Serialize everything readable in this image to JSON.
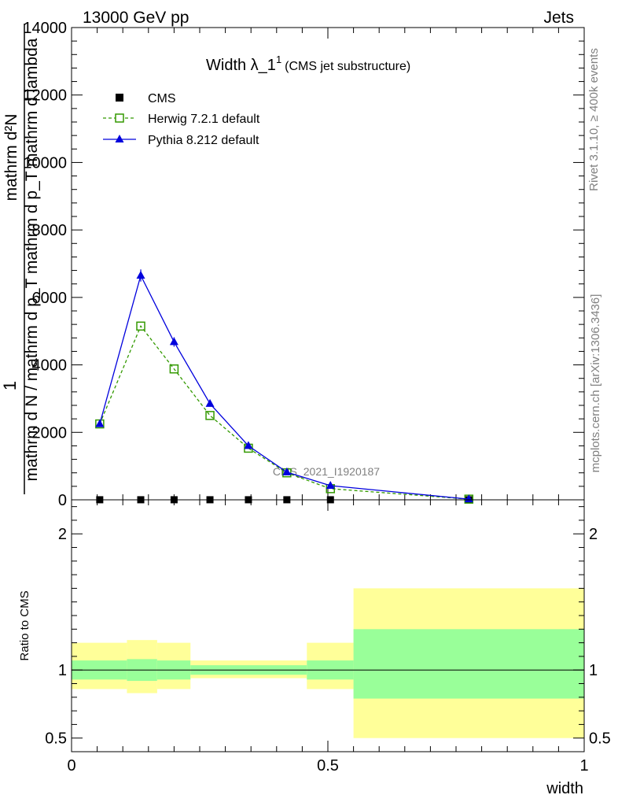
{
  "header": {
    "left": "13000 GeV pp",
    "right": "Jets"
  },
  "side": {
    "rivet": "Rivet 3.1.10, ≥ 400k events",
    "mcplots": "mcplots.cern.ch [arXiv:1306.3436]"
  },
  "watermark": "CMS_2021_I1920187",
  "ylabel_main": {
    "one": "1",
    "frac_top": "mathrm d²N",
    "frac_bottom": "mathrm d N / mathrm d p_T mathrm d p_T mathrm d lambda"
  },
  "chart_data": [
    {
      "type": "line",
      "title": "Width λ_1¹ (CMS jet substructure)",
      "title_main": "Width λ_1",
      "title_sup": "1",
      "title_sub": "(CMS jet substructure)",
      "ylim": [
        0,
        14000
      ],
      "xlim": [
        0,
        1
      ],
      "yticks": [
        {
          "v": 0,
          "label": "0"
        },
        {
          "v": 2000,
          "label": "2000"
        },
        {
          "v": 4000,
          "label": "4000"
        },
        {
          "v": 6000,
          "label": "6000"
        },
        {
          "v": 8000,
          "label": "8000"
        },
        {
          "v": 10000,
          "label": "10000"
        },
        {
          "v": 12000,
          "label": "12000"
        },
        {
          "v": 14000,
          "label": "14000"
        }
      ],
      "legend_position": "top-left",
      "series": [
        {
          "name": "CMS",
          "color": "#000000",
          "marker": "square-filled",
          "x": [
            0.055,
            0.135,
            0.2,
            0.27,
            0.345,
            0.42,
            0.505,
            0.775
          ],
          "values": [
            2,
            2,
            2,
            2,
            2,
            2,
            2,
            2
          ]
        },
        {
          "name": "Herwig 7.2.1 default",
          "color": "#339900",
          "marker": "square-open",
          "dashed": true,
          "x": [
            0.055,
            0.135,
            0.2,
            0.27,
            0.345,
            0.42,
            0.505,
            0.775
          ],
          "values": [
            2250,
            5150,
            3880,
            2500,
            1530,
            800,
            330,
            20
          ]
        },
        {
          "name": "Pythia 8.212 default",
          "color": "#0000dd",
          "marker": "triangle-filled",
          "x": [
            0.055,
            0.135,
            0.2,
            0.27,
            0.345,
            0.42,
            0.505,
            0.775
          ],
          "values": [
            2250,
            6650,
            4680,
            2850,
            1600,
            820,
            420,
            20
          ],
          "errors": [
            60,
            180,
            140,
            80,
            60,
            40,
            30,
            5
          ]
        }
      ]
    },
    {
      "type": "area",
      "ylabel": "Ratio to CMS",
      "xlabel": "width",
      "ylim": [
        0.4,
        2.25
      ],
      "xlim": [
        0,
        1
      ],
      "yticks": [
        {
          "v": 0.5,
          "label": "0.5"
        },
        {
          "v": 1,
          "label": "1"
        },
        {
          "v": 2,
          "label": "2"
        }
      ],
      "xticks": [
        {
          "v": 0,
          "label": "0"
        },
        {
          "v": 0.5,
          "label": "0.5"
        },
        {
          "v": 1,
          "label": "1"
        }
      ],
      "reference": 1.0,
      "band_colors": {
        "outer": "#ffff99",
        "inner": "#99ff99"
      },
      "bands": [
        {
          "x0": 0.0,
          "x1": 0.108,
          "outer": [
            0.86,
            1.2
          ],
          "inner": [
            0.93,
            1.07
          ]
        },
        {
          "x0": 0.108,
          "x1": 0.167,
          "outer": [
            0.83,
            1.22
          ],
          "inner": [
            0.92,
            1.08
          ]
        },
        {
          "x0": 0.167,
          "x1": 0.232,
          "outer": [
            0.86,
            1.2
          ],
          "inner": [
            0.93,
            1.07
          ]
        },
        {
          "x0": 0.232,
          "x1": 0.459,
          "outer": [
            0.94,
            1.07
          ],
          "inner": [
            0.965,
            1.035
          ]
        },
        {
          "x0": 0.459,
          "x1": 0.55,
          "outer": [
            0.86,
            1.2
          ],
          "inner": [
            0.93,
            1.07
          ]
        },
        {
          "x0": 0.55,
          "x1": 1.0,
          "outer": [
            0.5,
            1.6
          ],
          "inner": [
            0.79,
            1.3
          ]
        }
      ]
    }
  ]
}
